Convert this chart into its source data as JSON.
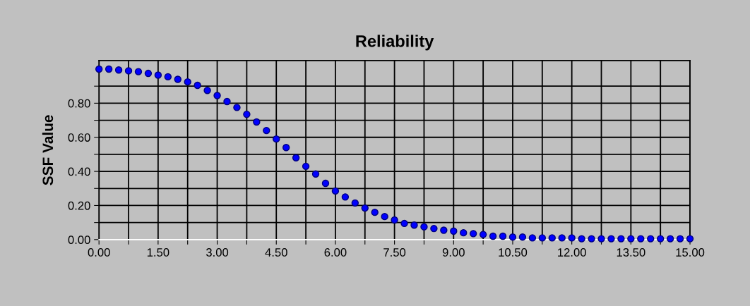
{
  "chart_data": {
    "type": "scatter",
    "title": "Reliability",
    "ylabel": "SSF Value",
    "xlim": [
      0,
      15
    ],
    "ylim": [
      0,
      1.05
    ],
    "xticks": [
      {
        "value": 0,
        "label": "0.00"
      },
      {
        "value": 0.75,
        "label": null
      },
      {
        "value": 1.5,
        "label": "1.50"
      },
      {
        "value": 2.25,
        "label": null
      },
      {
        "value": 3,
        "label": "3.00"
      },
      {
        "value": 3.75,
        "label": null
      },
      {
        "value": 4.5,
        "label": "4.50"
      },
      {
        "value": 5.25,
        "label": null
      },
      {
        "value": 6,
        "label": "6.00"
      },
      {
        "value": 6.75,
        "label": null
      },
      {
        "value": 7.5,
        "label": "7.50"
      },
      {
        "value": 8.25,
        "label": null
      },
      {
        "value": 9,
        "label": "9.00"
      },
      {
        "value": 9.75,
        "label": null
      },
      {
        "value": 10.5,
        "label": "10.50"
      },
      {
        "value": 11.25,
        "label": null
      },
      {
        "value": 12,
        "label": "12.00"
      },
      {
        "value": 12.75,
        "label": null
      },
      {
        "value": 13.5,
        "label": "13.50"
      },
      {
        "value": 14.25,
        "label": null
      },
      {
        "value": 15,
        "label": "15.00"
      }
    ],
    "yticks": [
      {
        "value": 0,
        "label": "0.00"
      },
      {
        "value": 0.1,
        "label": null
      },
      {
        "value": 0.2,
        "label": "0.20"
      },
      {
        "value": 0.3,
        "label": null
      },
      {
        "value": 0.4,
        "label": "0.40"
      },
      {
        "value": 0.5,
        "label": null
      },
      {
        "value": 0.6,
        "label": "0.60"
      },
      {
        "value": 0.7,
        "label": null
      },
      {
        "value": 0.8,
        "label": "0.80"
      },
      {
        "value": 0.9,
        "label": null
      }
    ],
    "grid": true,
    "marker": "circle",
    "series": [
      {
        "color": "#0000ff",
        "x": [
          0,
          0.25,
          0.5,
          0.75,
          1.0,
          1.25,
          1.5,
          1.75,
          2.0,
          2.25,
          2.5,
          2.75,
          3.0,
          3.25,
          3.5,
          3.75,
          4.0,
          4.25,
          4.5,
          4.75,
          5.0,
          5.25,
          5.5,
          5.75,
          6.0,
          6.25,
          6.5,
          6.75,
          7.0,
          7.25,
          7.5,
          7.75,
          8.0,
          8.25,
          8.5,
          8.75,
          9.0,
          9.25,
          9.5,
          9.75,
          10.0,
          10.25,
          10.5,
          10.75,
          11.0,
          11.25,
          11.5,
          11.75,
          12.0,
          12.25,
          12.5,
          12.75,
          13.0,
          13.25,
          13.5,
          13.75,
          14.0,
          14.25,
          14.5,
          14.75,
          15.0
        ],
        "values": [
          1.0,
          1.0,
          0.995,
          0.99,
          0.985,
          0.975,
          0.965,
          0.955,
          0.94,
          0.925,
          0.905,
          0.875,
          0.845,
          0.81,
          0.775,
          0.735,
          0.69,
          0.64,
          0.59,
          0.54,
          0.48,
          0.43,
          0.385,
          0.33,
          0.285,
          0.25,
          0.215,
          0.185,
          0.16,
          0.135,
          0.115,
          0.095,
          0.085,
          0.075,
          0.065,
          0.055,
          0.05,
          0.04,
          0.035,
          0.03,
          0.02,
          0.02,
          0.015,
          0.015,
          0.01,
          0.01,
          0.01,
          0.01,
          0.01,
          0.005,
          0.005,
          0.005,
          0.005,
          0.005,
          0.005,
          0.005,
          0.005,
          0.005,
          0.005,
          0.005,
          0.005
        ]
      }
    ]
  }
}
